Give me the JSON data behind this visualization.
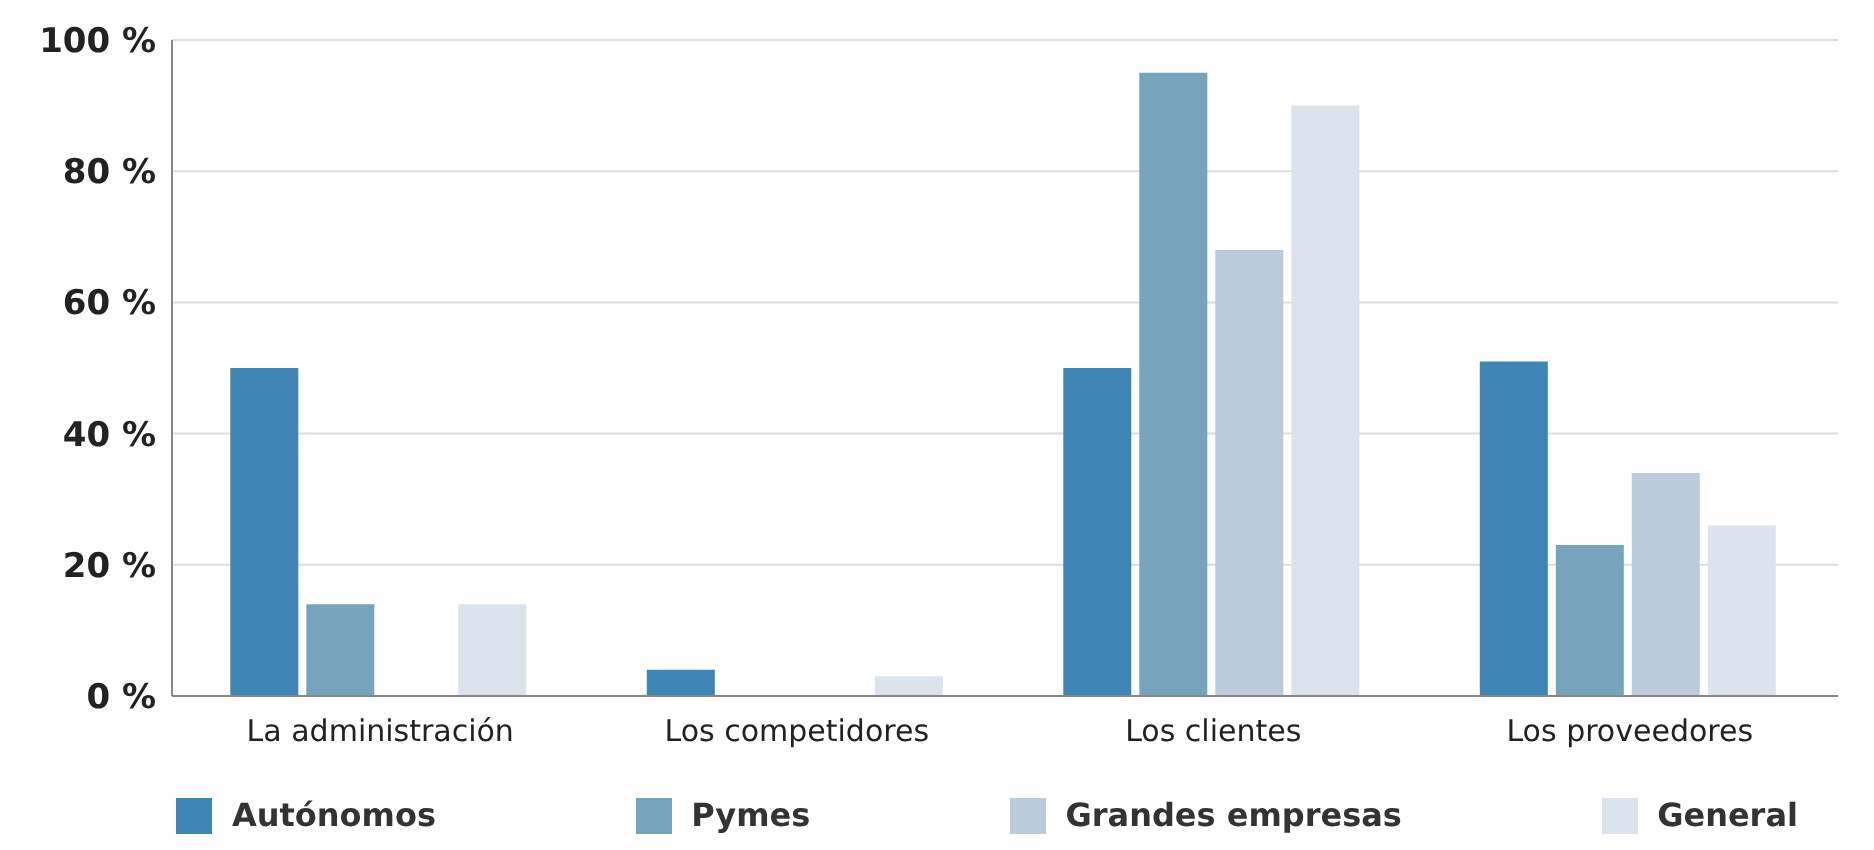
{
  "chart_data": {
    "type": "bar",
    "categories": [
      "La administración",
      "Los competidores",
      "Los clientes",
      "Los proveedores"
    ],
    "series": [
      {
        "name": "Autónomos",
        "color": "#3f85b4",
        "values": [
          50,
          4,
          50,
          51
        ]
      },
      {
        "name": "Pymes",
        "color": "#76a4bd",
        "values": [
          14,
          0,
          95,
          23
        ]
      },
      {
        "name": "Grandes empresas",
        "color": "#bccbdb",
        "values": [
          0,
          0,
          68,
          34
        ]
      },
      {
        "name": "General",
        "color": "#dbe3ec",
        "values": [
          14,
          3,
          90,
          26
        ]
      }
    ],
    "ylim": [
      0,
      100
    ],
    "yticks": [
      {
        "value": 0,
        "label": "0 %"
      },
      {
        "value": 20,
        "label": "20 %"
      },
      {
        "value": 40,
        "label": "40 %"
      },
      {
        "value": 60,
        "label": "60 %"
      },
      {
        "value": 80,
        "label": "80 %"
      },
      {
        "value": 100,
        "label": "100 %"
      }
    ],
    "grid": "y",
    "legend": "bottom"
  }
}
